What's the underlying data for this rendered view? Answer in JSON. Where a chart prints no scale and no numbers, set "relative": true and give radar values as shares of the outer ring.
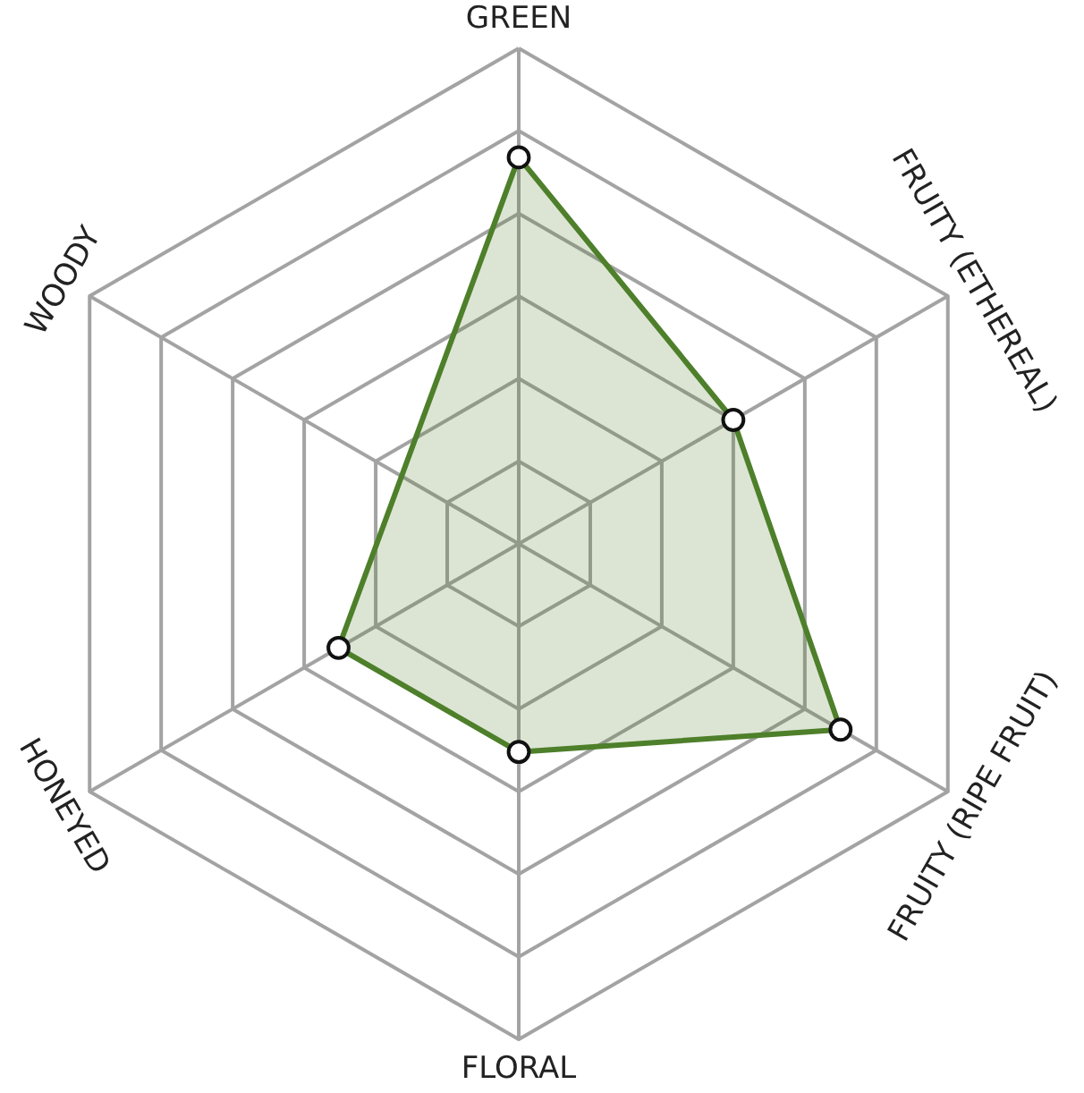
{
  "chart_data": {
    "type": "radar",
    "categories": [
      "GREEN",
      "FRUITY (ETHEREAL)",
      "FRUITY (RIPE FRUIT)",
      "FLORAL",
      "HONEYED",
      "WOODY"
    ],
    "relative": true,
    "grid": true,
    "marker": "circle",
    "series": [
      {
        "color": "#4e7f2a",
        "values": [
          0.78,
          0.5,
          0.75,
          0.42,
          0.42,
          null
        ]
      }
    ]
  }
}
